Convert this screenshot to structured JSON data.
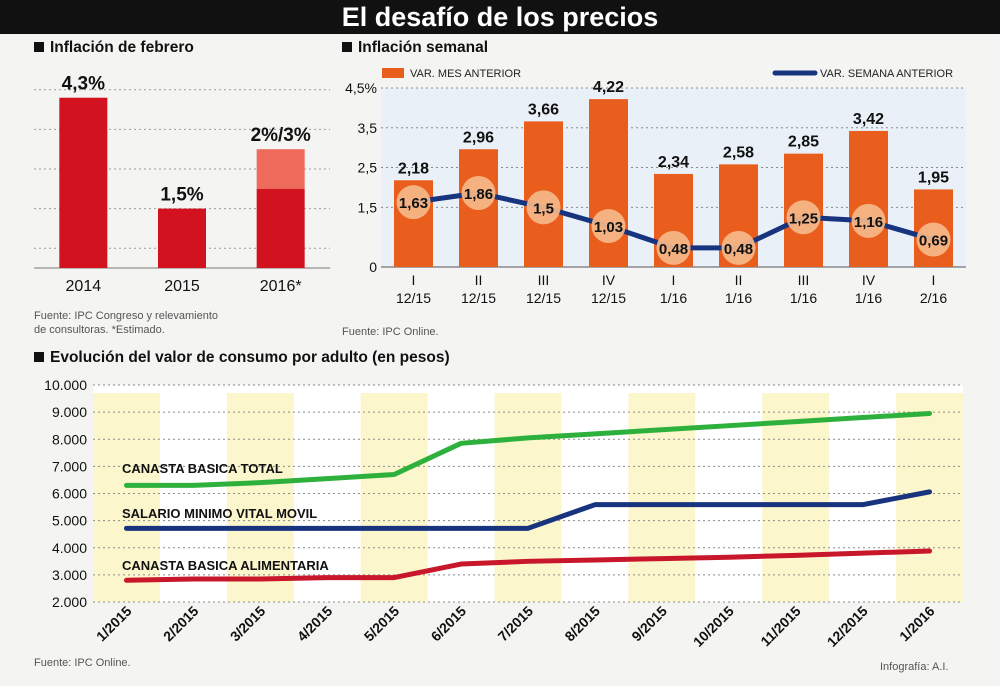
{
  "header": {
    "title": "El desafío de los precios"
  },
  "charts": {
    "febrero": {
      "title": "Inflación de febrero",
      "source": [
        "Fuente: IPC Congreso y relevamiento",
        "de consultoras. *Estimado."
      ]
    },
    "semanal": {
      "title": "Inflación semanal",
      "source": "Fuente: IPC Online."
    },
    "evolucion": {
      "title": "Evolución del valor de consumo por adulto (en pesos)",
      "source": "Fuente: IPC Online."
    }
  },
  "credit": "Infografía: A.I.",
  "colors": {
    "red": "#d3121f",
    "red_light": "#ee6a5b",
    "orange": "#e95d1d",
    "navy": "#18347e",
    "green": "#2db13c",
    "dark_red": "#c8162a",
    "band": "#fcf6cc",
    "bubble": "#f6b98a"
  },
  "chart_data": [
    {
      "type": "bar",
      "title": "Inflación de febrero",
      "categories": [
        "2014",
        "2015",
        "2016*"
      ],
      "values": [
        4.3,
        1.5,
        3
      ],
      "range_2016": [
        2,
        3
      ],
      "labels": [
        "4,3%",
        "1,5%",
        "2%/3%"
      ],
      "ylim": [
        0,
        5
      ],
      "grid": true
    },
    {
      "type": "bar",
      "title": "Inflación semanal",
      "categories": [
        [
          "I",
          "12/15"
        ],
        [
          "II",
          "12/15"
        ],
        [
          "III",
          "12/15"
        ],
        [
          "IV",
          "12/15"
        ],
        [
          "I",
          "1/16"
        ],
        [
          "II",
          "1/16"
        ],
        [
          "III",
          "1/16"
        ],
        [
          "IV",
          "1/16"
        ],
        [
          "I",
          "2/16"
        ]
      ],
      "series": [
        {
          "name": "VAR. MES ANTERIOR",
          "type": "bar",
          "values": [
            2.18,
            2.96,
            3.66,
            4.22,
            2.34,
            2.58,
            2.85,
            3.42,
            1.95
          ],
          "labels": [
            "2,18",
            "2,96",
            "3,66",
            "4,22",
            "2,34",
            "2,58",
            "2,85",
            "3,42",
            "1,95"
          ]
        },
        {
          "name": "VAR. SEMANA ANTERIOR",
          "type": "line",
          "values": [
            1.63,
            1.86,
            1.5,
            1.03,
            0.48,
            0.48,
            1.25,
            1.16,
            0.69
          ],
          "labels": [
            "1,63",
            "1,86",
            "1,5",
            "1,03",
            "0,48",
            "0,48",
            "1,25",
            "1,16",
            "0,69"
          ]
        }
      ],
      "yticks": [
        "0",
        "1,5",
        "2,5",
        "3,5",
        "4,5%"
      ],
      "ytick_values": [
        0,
        1.5,
        2.5,
        3.5,
        4.5
      ],
      "ylim": [
        0,
        4.5
      ],
      "legend": "top",
      "grid": true
    },
    {
      "type": "line",
      "title": "Evolución del valor de consumo por adulto (en pesos)",
      "categories": [
        "1/2015",
        "2/2015",
        "3/2015",
        "4/2015",
        "5/2015",
        "6/2015",
        "7/2015",
        "8/2015",
        "9/2015",
        "10/2015",
        "11/2015",
        "12/2015",
        "1/2016"
      ],
      "series": [
        {
          "name": "CANASTA BASICA TOTAL",
          "values": [
            6300,
            6300,
            6400,
            6550,
            6700,
            7850,
            8050,
            8200,
            8350,
            8500,
            8650,
            8800,
            8950
          ]
        },
        {
          "name": "SALARIO MINIMO VITAL MOVIL",
          "values": [
            4716,
            4716,
            4716,
            4716,
            4716,
            4716,
            4716,
            5588,
            5588,
            5588,
            5588,
            5588,
            6060
          ]
        },
        {
          "name": "CANASTA BASICA ALIMENTARIA",
          "values": [
            2800,
            2850,
            2850,
            2900,
            2900,
            3400,
            3500,
            3550,
            3600,
            3650,
            3720,
            3800,
            3880
          ]
        }
      ],
      "yticks": [
        "2.000",
        "3.000",
        "4.000",
        "5.000",
        "6.000",
        "7.000",
        "8.000",
        "9.000",
        "10.000"
      ],
      "ylim": [
        2000,
        10000
      ],
      "grid": true
    }
  ]
}
